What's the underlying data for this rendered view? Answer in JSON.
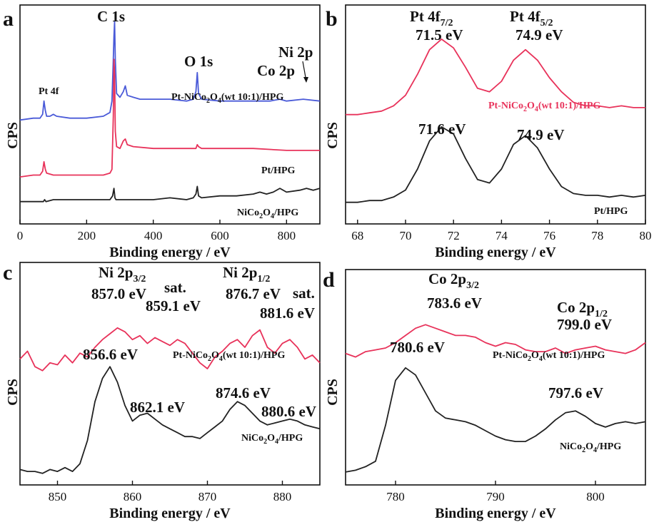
{
  "chart_data": [
    {
      "panel": "a",
      "type": "line",
      "xlabel": "Binding energy / eV",
      "ylabel": "CPS",
      "xlim": [
        0,
        900
      ],
      "xticks": [
        0,
        200,
        400,
        600,
        800
      ],
      "series": [
        {
          "name": "Pt-NiCo2O4(wt 10:1)/HPG",
          "color": "#4a5ad8",
          "x": [
            0,
            40,
            60,
            68,
            72,
            76,
            80,
            90,
            100,
            110,
            150,
            200,
            250,
            270,
            276,
            280,
            282,
            284,
            286,
            290,
            300,
            310,
            316,
            322,
            340,
            360,
            400,
            450,
            500,
            520,
            528,
            532,
            536,
            545,
            600,
            650,
            700,
            750,
            780,
            800,
            850,
            900
          ],
          "y": [
            0.48,
            0.49,
            0.49,
            0.51,
            0.58,
            0.53,
            0.5,
            0.5,
            0.51,
            0.5,
            0.49,
            0.49,
            0.5,
            0.52,
            0.58,
            0.8,
            0.92,
            1.0,
            0.8,
            0.62,
            0.6,
            0.63,
            0.66,
            0.61,
            0.6,
            0.59,
            0.59,
            0.59,
            0.58,
            0.59,
            0.63,
            0.73,
            0.62,
            0.59,
            0.58,
            0.58,
            0.58,
            0.58,
            0.59,
            0.58,
            0.59,
            0.58
          ]
        },
        {
          "name": "Pt/HPG",
          "color": "#e8325a",
          "x": [
            0,
            40,
            60,
            68,
            72,
            76,
            80,
            100,
            150,
            200,
            250,
            270,
            276,
            280,
            282,
            284,
            286,
            290,
            300,
            310,
            316,
            322,
            340,
            400,
            450,
            500,
            520,
            528,
            532,
            536,
            545,
            600,
            700,
            800,
            900
          ],
          "y": [
            0.18,
            0.19,
            0.19,
            0.21,
            0.26,
            0.22,
            0.2,
            0.19,
            0.19,
            0.19,
            0.19,
            0.2,
            0.22,
            0.5,
            0.8,
            0.72,
            0.42,
            0.34,
            0.33,
            0.37,
            0.38,
            0.35,
            0.34,
            0.33,
            0.33,
            0.33,
            0.33,
            0.33,
            0.35,
            0.34,
            0.33,
            0.33,
            0.33,
            0.32,
            0.32
          ]
        },
        {
          "name": "NiCo2O4/HPG",
          "color": "#222222",
          "x": [
            0,
            40,
            60,
            70,
            74,
            78,
            100,
            150,
            200,
            250,
            270,
            278,
            282,
            285,
            288,
            300,
            350,
            400,
            450,
            500,
            520,
            528,
            532,
            536,
            545,
            600,
            650,
            700,
            720,
            740,
            760,
            780,
            800,
            840,
            860,
            880,
            900
          ],
          "y": [
            0.05,
            0.05,
            0.05,
            0.05,
            0.06,
            0.05,
            0.06,
            0.06,
            0.06,
            0.06,
            0.06,
            0.08,
            0.12,
            0.07,
            0.06,
            0.06,
            0.06,
            0.06,
            0.07,
            0.06,
            0.07,
            0.09,
            0.13,
            0.08,
            0.07,
            0.08,
            0.08,
            0.09,
            0.1,
            0.09,
            0.1,
            0.12,
            0.1,
            0.11,
            0.12,
            0.11,
            0.12
          ]
        }
      ],
      "annotations": [
        "C 1s",
        "O 1s",
        "Pt 4f",
        "Ni 2p",
        "Co 2p"
      ]
    },
    {
      "panel": "b",
      "type": "line",
      "xlabel": "Binding energy / eV",
      "ylabel": "CPS",
      "xlim": [
        67.5,
        80
      ],
      "xticks": [
        68,
        70,
        72,
        74,
        76,
        78,
        80
      ],
      "series": [
        {
          "name": "Pt-NiCo2O4(wt 10:1)/HPG",
          "color": "#e8325a",
          "x": [
            67.5,
            68,
            68.5,
            69,
            69.5,
            70,
            70.5,
            71,
            71.5,
            72,
            72.5,
            73,
            73.5,
            74,
            74.5,
            75,
            75.5,
            76,
            76.5,
            77,
            77.5,
            78,
            78.5,
            79,
            79.5,
            80
          ],
          "y": [
            0.55,
            0.55,
            0.56,
            0.57,
            0.6,
            0.66,
            0.78,
            0.92,
            0.98,
            0.93,
            0.82,
            0.7,
            0.68,
            0.74,
            0.86,
            0.92,
            0.86,
            0.76,
            0.68,
            0.62,
            0.6,
            0.6,
            0.59,
            0.6,
            0.59,
            0.59
          ]
        },
        {
          "name": "Pt/HPG",
          "color": "#222222",
          "x": [
            67.5,
            68,
            68.5,
            69,
            69.5,
            70,
            70.5,
            71,
            71.5,
            72,
            72.5,
            73,
            73.5,
            74,
            74.5,
            75,
            75.5,
            76,
            76.5,
            77,
            77.5,
            78,
            78.5,
            79,
            79.5,
            80
          ],
          "y": [
            0.05,
            0.05,
            0.06,
            0.06,
            0.08,
            0.12,
            0.24,
            0.4,
            0.48,
            0.44,
            0.3,
            0.18,
            0.16,
            0.24,
            0.38,
            0.43,
            0.36,
            0.24,
            0.14,
            0.1,
            0.09,
            0.09,
            0.08,
            0.09,
            0.08,
            0.09
          ]
        }
      ],
      "annotations": [
        "Pt 4f7/2",
        "Pt 4f5/2",
        "71.5 eV",
        "74.9 eV",
        "71.6 eV",
        "74.9 eV"
      ]
    },
    {
      "panel": "c",
      "type": "line",
      "xlabel": "Binding energy / eV",
      "ylabel": "CPS",
      "xlim": [
        845,
        885
      ],
      "xticks": [
        850,
        860,
        870,
        880
      ],
      "series": [
        {
          "name": "Pt-NiCo2O4(wt 10:1)/HPG",
          "color": "#e8325a",
          "x": [
            845,
            846,
            847,
            848,
            849,
            850,
            851,
            852,
            853,
            854,
            855,
            856,
            857,
            858,
            859,
            860,
            861,
            862,
            863,
            864,
            865,
            866,
            867,
            868,
            869,
            870,
            871,
            872,
            873,
            874,
            875,
            876,
            877,
            878,
            879,
            880,
            881,
            882,
            883,
            884,
            885
          ],
          "y": [
            0.62,
            0.66,
            0.58,
            0.56,
            0.6,
            0.59,
            0.64,
            0.6,
            0.65,
            0.63,
            0.68,
            0.72,
            0.75,
            0.78,
            0.76,
            0.72,
            0.74,
            0.7,
            0.73,
            0.71,
            0.69,
            0.72,
            0.7,
            0.65,
            0.6,
            0.57,
            0.63,
            0.66,
            0.7,
            0.72,
            0.68,
            0.74,
            0.77,
            0.68,
            0.65,
            0.7,
            0.72,
            0.68,
            0.62,
            0.64,
            0.6
          ]
        },
        {
          "name": "NiCo2O4/HPG",
          "color": "#222222",
          "x": [
            845,
            846,
            847,
            848,
            849,
            850,
            851,
            852,
            853,
            854,
            855,
            856,
            857,
            858,
            859,
            860,
            861,
            862,
            863,
            864,
            865,
            866,
            867,
            868,
            869,
            870,
            871,
            872,
            873,
            874,
            875,
            876,
            877,
            878,
            879,
            880,
            881,
            882,
            883,
            884,
            885
          ],
          "y": [
            0.05,
            0.04,
            0.04,
            0.03,
            0.05,
            0.04,
            0.06,
            0.04,
            0.08,
            0.2,
            0.4,
            0.52,
            0.58,
            0.5,
            0.38,
            0.3,
            0.33,
            0.34,
            0.31,
            0.28,
            0.26,
            0.24,
            0.22,
            0.22,
            0.21,
            0.24,
            0.27,
            0.3,
            0.36,
            0.4,
            0.38,
            0.34,
            0.3,
            0.28,
            0.29,
            0.3,
            0.31,
            0.3,
            0.28,
            0.27,
            0.26
          ]
        }
      ],
      "annotations": [
        "Ni 2p3/2",
        "Ni 2p1/2",
        "sat.",
        "sat.",
        "857.0 eV",
        "859.1 eV",
        "876.7 eV",
        "881.6 eV",
        "856.6 eV",
        "862.1 eV",
        "874.6 eV",
        "880.6 eV"
      ]
    },
    {
      "panel": "d",
      "type": "line",
      "xlabel": "Binding energy / eV",
      "ylabel": "CPS",
      "xlim": [
        775,
        805
      ],
      "xticks": [
        780,
        790,
        800
      ],
      "series": [
        {
          "name": "Pt-NiCo2O4(wt 10:1)/HPG",
          "color": "#e8325a",
          "x": [
            775,
            776,
            777,
            778,
            779,
            780,
            781,
            782,
            783,
            784,
            785,
            786,
            787,
            788,
            789,
            790,
            791,
            792,
            793,
            794,
            795,
            796,
            797,
            798,
            799,
            800,
            801,
            802,
            803,
            804,
            805
          ],
          "y": [
            0.7,
            0.68,
            0.71,
            0.72,
            0.73,
            0.76,
            0.8,
            0.84,
            0.86,
            0.84,
            0.82,
            0.8,
            0.8,
            0.79,
            0.76,
            0.74,
            0.76,
            0.75,
            0.72,
            0.71,
            0.71,
            0.73,
            0.7,
            0.72,
            0.73,
            0.74,
            0.72,
            0.71,
            0.7,
            0.72,
            0.76
          ]
        },
        {
          "name": "NiCo2O4/HPG",
          "color": "#222222",
          "x": [
            775,
            776,
            777,
            778,
            779,
            780,
            781,
            782,
            783,
            784,
            785,
            786,
            787,
            788,
            789,
            790,
            791,
            792,
            793,
            794,
            795,
            796,
            797,
            798,
            799,
            800,
            801,
            802,
            803,
            804,
            805
          ],
          "y": [
            0.04,
            0.05,
            0.07,
            0.1,
            0.3,
            0.55,
            0.62,
            0.58,
            0.48,
            0.38,
            0.34,
            0.33,
            0.32,
            0.3,
            0.27,
            0.24,
            0.22,
            0.21,
            0.21,
            0.24,
            0.28,
            0.33,
            0.37,
            0.38,
            0.35,
            0.31,
            0.29,
            0.31,
            0.32,
            0.31,
            0.32
          ]
        }
      ],
      "annotations": [
        "Co 2p3/2",
        "Co 2p1/2",
        "783.6 eV",
        "799.0 eV",
        "780.6 eV",
        "797.6 eV"
      ]
    }
  ]
}
